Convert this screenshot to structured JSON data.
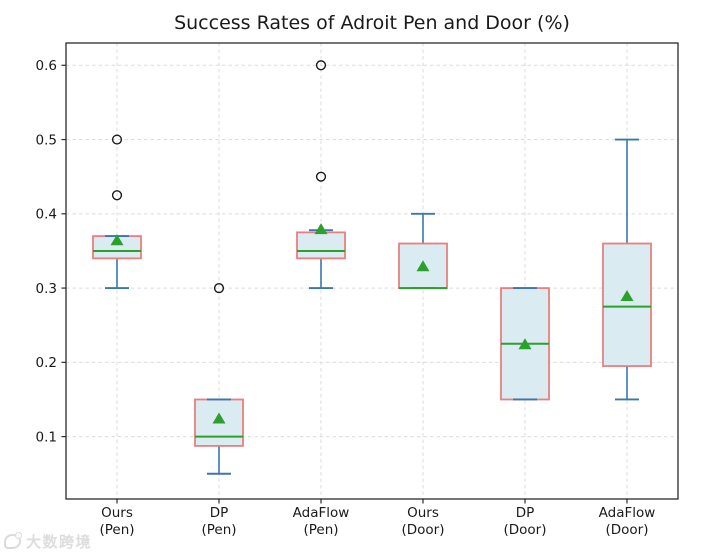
{
  "figure": {
    "title": "Success Rates of Adroit Pen and Door (%)"
  },
  "watermark": {
    "text": "大数跨境"
  },
  "chart_data": {
    "type": "box",
    "title": "Success Rates of Adroit Pen and Door (%)",
    "xlabel": "",
    "ylabel": "",
    "ylim": [
      0.016,
      0.63
    ],
    "yticks": [
      0.1,
      0.2,
      0.3,
      0.4,
      0.5,
      0.6
    ],
    "grid": true,
    "grid_style": "dashed",
    "legend": "none",
    "categories": [
      {
        "line1": "Ours",
        "line2": "(Pen)"
      },
      {
        "line1": "DP",
        "line2": "(Pen)"
      },
      {
        "line1": "AdaFlow",
        "line2": "(Pen)"
      },
      {
        "line1": "Ours",
        "line2": "(Door)"
      },
      {
        "line1": "DP",
        "line2": "(Door)"
      },
      {
        "line1": "AdaFlow",
        "line2": "(Door)"
      }
    ],
    "series": [
      {
        "name": "Ours (Pen)",
        "whisker_low": 0.3,
        "q1": 0.34,
        "median": 0.35,
        "q3": 0.37,
        "whisker_high": 0.37,
        "mean": 0.365,
        "outliers": [
          0.425,
          0.5
        ]
      },
      {
        "name": "DP (Pen)",
        "whisker_low": 0.05,
        "q1": 0.0875,
        "median": 0.1,
        "q3": 0.15,
        "whisker_high": 0.15,
        "mean": 0.125,
        "outliers": [
          0.3
        ]
      },
      {
        "name": "AdaFlow (Pen)",
        "whisker_low": 0.3,
        "q1": 0.34,
        "median": 0.35,
        "q3": 0.375,
        "whisker_high": 0.378,
        "mean": 0.38,
        "outliers": [
          0.45,
          0.6
        ]
      },
      {
        "name": "Ours (Door)",
        "whisker_low": 0.3,
        "q1": 0.3,
        "median": 0.3,
        "q3": 0.36,
        "whisker_high": 0.4,
        "mean": 0.33,
        "outliers": []
      },
      {
        "name": "DP (Door)",
        "whisker_low": 0.15,
        "q1": 0.15,
        "median": 0.225,
        "q3": 0.3,
        "whisker_high": 0.3,
        "mean": 0.225,
        "outliers": []
      },
      {
        "name": "AdaFlow (Door)",
        "whisker_low": 0.15,
        "q1": 0.195,
        "median": 0.275,
        "q3": 0.36,
        "whisker_high": 0.5,
        "mean": 0.29,
        "outliers": []
      }
    ],
    "colors": {
      "box_fill": "#daebf2",
      "box_edge": "#e8807f",
      "median": "#2ca02c",
      "mean_marker": "#2ca02c",
      "whisker": "#3b76af",
      "outlier_edge": "#1a1a1a",
      "grid": "#dcdcdc",
      "spine": "#2b2b2b",
      "text": "#1a1a1a"
    }
  }
}
